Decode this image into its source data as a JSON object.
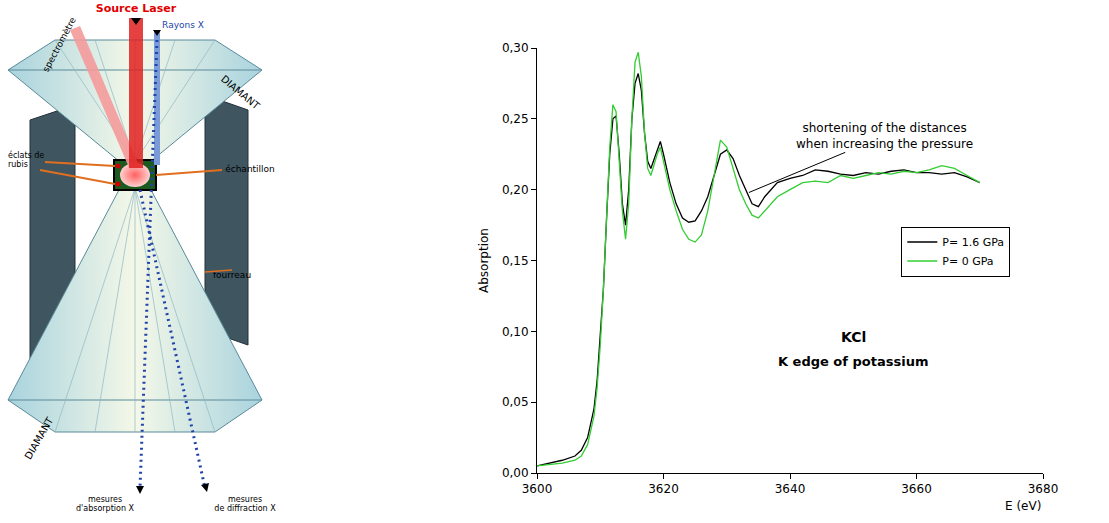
{
  "diagram": {
    "laser_source": "Source Laser",
    "spectrometer": "spectromètre",
    "xrays": "Rayons X",
    "diamond_labels": [
      "DIAMANT",
      "DIAMANT"
    ],
    "ruby": [
      "éclats de",
      "rubis"
    ],
    "sample": "échantillon",
    "gasket": "fourreau",
    "absorption_measure": [
      "mesures",
      "d'absorption X"
    ],
    "diffraction_measure": [
      "mesures",
      "de diffraction X"
    ]
  },
  "chart_data": {
    "type": "line",
    "xlabel": "E (eV)",
    "ylabel": "Absorption",
    "x": [
      3600,
      3604,
      3606,
      3607,
      3608,
      3609,
      3609.5,
      3610,
      3610.5,
      3611,
      3611.5,
      3612,
      3612.5,
      3613,
      3613.5,
      3614,
      3614.5,
      3615,
      3615.5,
      3616,
      3616.5,
      3617,
      3617.5,
      3618,
      3619,
      3619.5,
      3620,
      3621,
      3622,
      3623,
      3624,
      3625,
      3626,
      3627,
      3628,
      3629,
      3630,
      3631,
      3632,
      3633,
      3634,
      3635,
      3636,
      3638,
      3640,
      3642,
      3644,
      3646,
      3648,
      3650,
      3652,
      3654,
      3656,
      3658,
      3660,
      3662,
      3664,
      3666,
      3668,
      3670
    ],
    "series": [
      {
        "name": "P= 1.6 GPa",
        "color": "#000000",
        "values": [
          0.005,
          0.009,
          0.012,
          0.016,
          0.025,
          0.045,
          0.065,
          0.095,
          0.13,
          0.18,
          0.225,
          0.25,
          0.252,
          0.225,
          0.19,
          0.175,
          0.2,
          0.25,
          0.275,
          0.282,
          0.27,
          0.24,
          0.22,
          0.215,
          0.228,
          0.234,
          0.225,
          0.205,
          0.19,
          0.18,
          0.177,
          0.178,
          0.185,
          0.195,
          0.21,
          0.225,
          0.228,
          0.222,
          0.21,
          0.2,
          0.19,
          0.188,
          0.195,
          0.205,
          0.208,
          0.21,
          0.214,
          0.213,
          0.211,
          0.21,
          0.212,
          0.211,
          0.213,
          0.214,
          0.212,
          0.212,
          0.211,
          0.212,
          0.209,
          0.205
        ]
      },
      {
        "name": "P= 0 GPa",
        "color": "#33cc33",
        "values": [
          0.005,
          0.007,
          0.009,
          0.012,
          0.02,
          0.04,
          0.06,
          0.09,
          0.13,
          0.18,
          0.23,
          0.26,
          0.255,
          0.22,
          0.185,
          0.165,
          0.19,
          0.25,
          0.29,
          0.297,
          0.28,
          0.24,
          0.215,
          0.21,
          0.225,
          0.23,
          0.22,
          0.2,
          0.185,
          0.172,
          0.165,
          0.163,
          0.168,
          0.185,
          0.21,
          0.235,
          0.23,
          0.215,
          0.2,
          0.19,
          0.182,
          0.18,
          0.185,
          0.195,
          0.2,
          0.205,
          0.206,
          0.205,
          0.21,
          0.208,
          0.21,
          0.212,
          0.211,
          0.213,
          0.212,
          0.214,
          0.217,
          0.215,
          0.21,
          0.205
        ]
      }
    ],
    "xlim": [
      3600,
      3680
    ],
    "xticks": [
      3600,
      3620,
      3640,
      3660,
      3680
    ],
    "ylim": [
      0,
      0.3
    ],
    "yticks": [
      {
        "value": 0,
        "label": "0,00"
      },
      {
        "value": 0.05,
        "label": "0,05"
      },
      {
        "value": 0.1,
        "label": "0,10"
      },
      {
        "value": 0.15,
        "label": "0,15"
      },
      {
        "value": 0.2,
        "label": "0,20"
      },
      {
        "value": 0.25,
        "label": "0,25"
      },
      {
        "value": 0.3,
        "label": "0,30"
      }
    ],
    "annotations": [
      {
        "text": [
          "shortening of the distances",
          "when increasing the pressure"
        ]
      },
      {
        "text": "KCl"
      },
      {
        "text": "K edge of potassium"
      }
    ],
    "legend": "right",
    "grid": false
  }
}
